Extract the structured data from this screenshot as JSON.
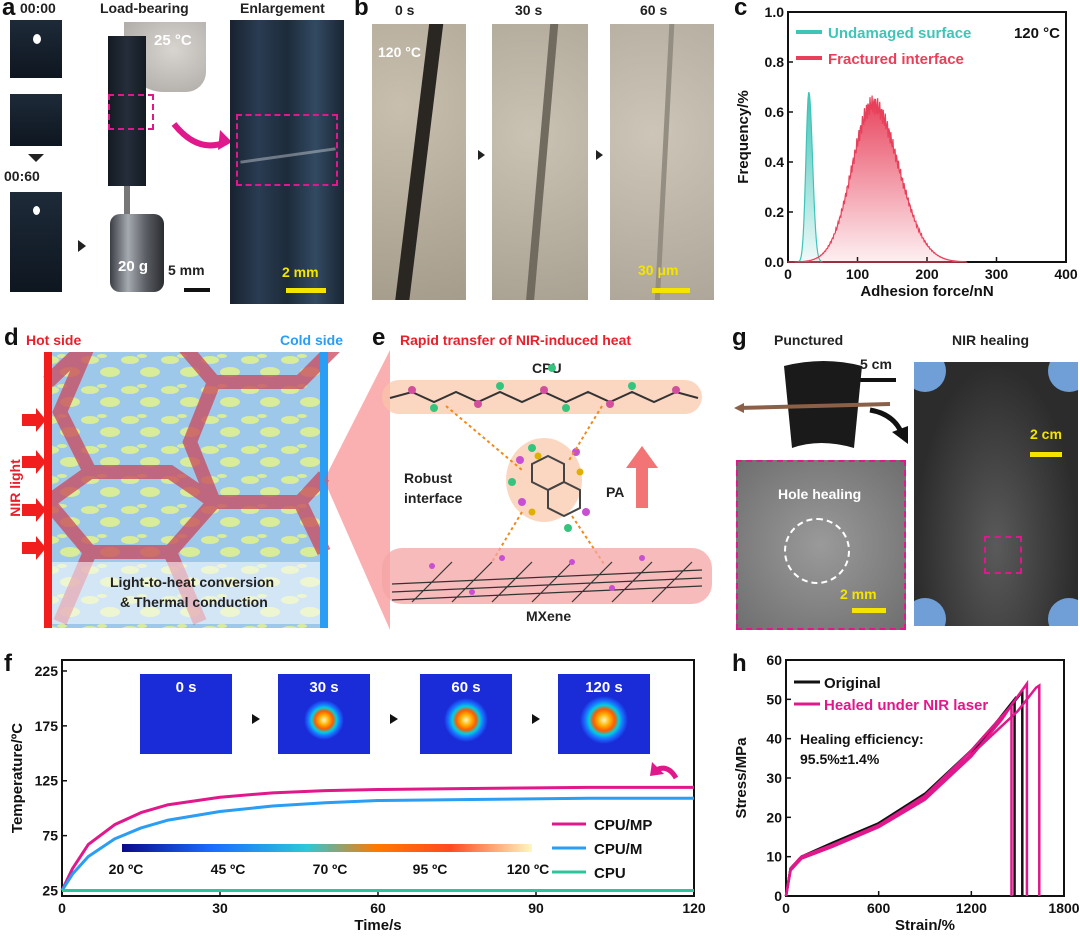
{
  "panel_a": {
    "label": "a",
    "time_start": "00:00",
    "time_end": "00:60",
    "load_bearing": "Load-bearing",
    "enlargement": "Enlargement",
    "temperature": "25 °C",
    "weight": "20 g",
    "scale_5mm": "5 mm",
    "scale_2mm": "2 mm"
  },
  "panel_b": {
    "label": "b",
    "times": [
      "0 s",
      "30 s",
      "60 s"
    ],
    "temperature": "120 °C",
    "scale": "30 μm"
  },
  "panel_c": {
    "label": "c",
    "chart_data": {
      "type": "area",
      "xlabel": "Adhesion force/nN",
      "ylabel": "Frequency/%",
      "xlim": [
        0,
        400
      ],
      "ylim": [
        0,
        1.0
      ],
      "xticks": [
        "0",
        "100",
        "200",
        "300",
        "400"
      ],
      "yticks": [
        "0.0",
        "0.2",
        "0.4",
        "0.6",
        "0.8",
        "1.0"
      ],
      "annotation": "120 °C",
      "series": [
        {
          "name": "Undamaged surface",
          "color": "#3fc4b8",
          "peak_x": 30,
          "peak_y": 0.68,
          "width": 6
        },
        {
          "name": "Fractured interface",
          "color": "#e8405a",
          "peak_x": 122,
          "peak_y": 0.63,
          "width": 42
        }
      ]
    }
  },
  "panel_d": {
    "label": "d",
    "hot_side": "Hot side",
    "cold_side": "Cold side",
    "nir_light": "NIR light",
    "caption_line1": "Light-to-heat conversion",
    "caption_line2": "& Thermal conduction"
  },
  "panel_e": {
    "label": "e",
    "title": "Rapid transfer of NIR-induced heat",
    "cpu": "CPU",
    "robust_line1": "Robust",
    "robust_line2": "interface",
    "pa": "PA",
    "mxene": "MXene"
  },
  "panel_g": {
    "label": "g",
    "punctured": "Punctured",
    "nir_healing": "NIR healing",
    "scale_5cm": "5 cm",
    "scale_2cm": "2 cm",
    "hole_healing": "Hole healing",
    "scale_2mm": "2 mm"
  },
  "panel_f": {
    "label": "f",
    "thermal_times": [
      "0 s",
      "30 s",
      "60 s",
      "120 s"
    ],
    "colorbar_labels": [
      "20 ºC",
      "45 ºC",
      "70 ºC",
      "95 ºC",
      "120 ºC"
    ],
    "chart_data": {
      "type": "line",
      "xlabel": "Time/s",
      "ylabel": "Temperature/ºC",
      "xlim": [
        0,
        120
      ],
      "ylim": [
        20,
        235
      ],
      "xticks": [
        "0",
        "30",
        "60",
        "90",
        "120"
      ],
      "yticks": [
        "25",
        "75",
        "125",
        "175",
        "225"
      ],
      "series": [
        {
          "name": "CPU/MP",
          "color": "#e0188c",
          "x": [
            0,
            2,
            5,
            10,
            15,
            20,
            30,
            40,
            50,
            60,
            80,
            100,
            120
          ],
          "y": [
            25,
            45,
            67,
            85,
            96,
            103,
            110,
            114,
            116,
            117,
            118,
            119,
            119
          ]
        },
        {
          "name": "CPU/M",
          "color": "#2a9df4",
          "x": [
            0,
            2,
            5,
            10,
            15,
            20,
            30,
            40,
            50,
            60,
            80,
            100,
            120
          ],
          "y": [
            25,
            40,
            56,
            72,
            82,
            89,
            97,
            102,
            105,
            107,
            108,
            109,
            109
          ]
        },
        {
          "name": "CPU",
          "color": "#2cc49a",
          "x": [
            0,
            30,
            60,
            90,
            120
          ],
          "y": [
            25,
            25,
            25,
            25,
            25
          ]
        }
      ]
    }
  },
  "panel_h": {
    "label": "h",
    "efficiency_label": "Healing efficiency:",
    "efficiency_value": "95.5%±1.4%",
    "chart_data": {
      "type": "line",
      "xlabel": "Strain/%",
      "ylabel": "Stress/MPa",
      "xlim": [
        0,
        1800
      ],
      "ylim": [
        0,
        60
      ],
      "xticks": [
        "0",
        "600",
        "1200",
        "1800"
      ],
      "yticks": [
        "0",
        "10",
        "20",
        "30",
        "40",
        "50",
        "60"
      ],
      "series": [
        {
          "name": "Original",
          "color": "#111111",
          "x": [
            0,
            30,
            100,
            300,
            600,
            900,
            1200,
            1400,
            1480,
            1480
          ],
          "y": [
            0,
            7,
            10,
            13,
            18,
            25,
            36,
            46,
            50,
            0
          ]
        },
        {
          "name": "Original",
          "color": "#111111",
          "x": [
            0,
            30,
            100,
            300,
            600,
            900,
            1200,
            1450,
            1530,
            1530
          ],
          "y": [
            0,
            7,
            10,
            13.5,
            18.5,
            26,
            37,
            48,
            52,
            0
          ]
        },
        {
          "name": "Healed under NIR laser",
          "color": "#e0188c",
          "x": [
            0,
            30,
            100,
            300,
            600,
            900,
            1200,
            1400,
            1460,
            1460
          ],
          "y": [
            0,
            6.5,
            9.5,
            12.5,
            17.5,
            24.5,
            35.5,
            45,
            48.5,
            0
          ]
        },
        {
          "name": "Healed under NIR laser",
          "color": "#e0188c",
          "x": [
            0,
            30,
            100,
            300,
            600,
            900,
            1200,
            1450,
            1560,
            1560
          ],
          "y": [
            0,
            7,
            10,
            13,
            18,
            25.5,
            37,
            48,
            54,
            0
          ]
        },
        {
          "name": "Healed under NIR laser",
          "color": "#e0188c",
          "x": [
            0,
            30,
            100,
            300,
            600,
            900,
            1200,
            1500,
            1620,
            1640,
            1640
          ],
          "y": [
            0,
            7,
            10,
            13,
            18,
            25,
            36,
            47,
            53,
            53.5,
            0
          ]
        }
      ]
    }
  }
}
